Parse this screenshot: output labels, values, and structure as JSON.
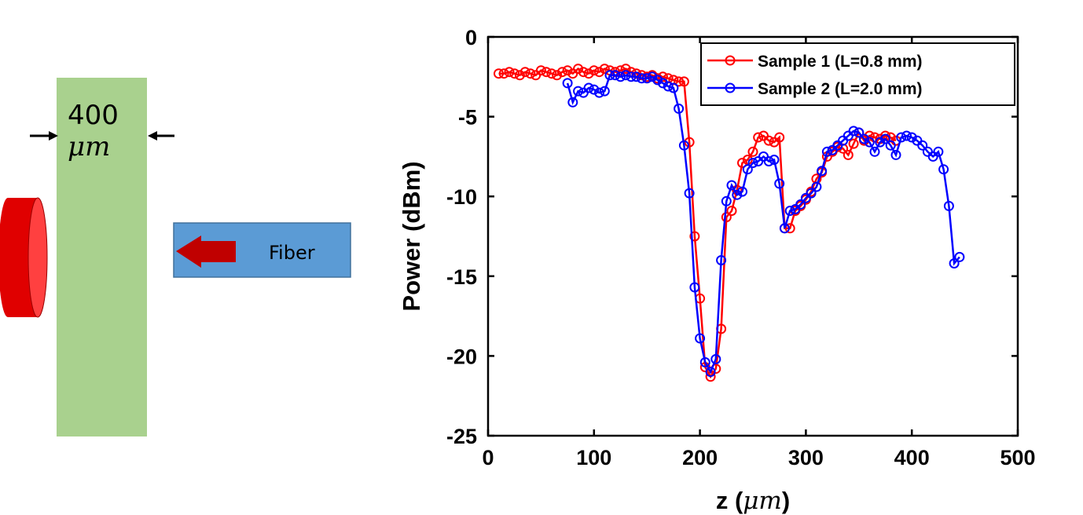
{
  "diagram": {
    "thickness_value": "400",
    "thickness_unit": "μm",
    "fiber_label": "Fiber",
    "colors": {
      "sample": "#a9d18e",
      "lens": "#ff0000",
      "fiber": "#5b9bd5",
      "arrow": "#c00000"
    }
  },
  "chart_data": {
    "type": "line",
    "xlabel_main": "z (",
    "xlabel_unit": "μm",
    "xlabel_end": ")",
    "ylabel": "Power (dBm)",
    "xlim": [
      0,
      500
    ],
    "ylim": [
      -25,
      0
    ],
    "xticks": [
      "0",
      "100",
      "200",
      "300",
      "400",
      "500"
    ],
    "yticks": [
      "0",
      "-5",
      "-10",
      "-15",
      "-20",
      "-25"
    ],
    "xtick_values": [
      0,
      100,
      200,
      300,
      400,
      500
    ],
    "ytick_values": [
      0,
      -5,
      -10,
      -15,
      -20,
      -25
    ],
    "grid": false,
    "legend_position": "top-right",
    "series": [
      {
        "name": "Sample 1 (L=0.8 mm)",
        "color": "#ff0000",
        "marker": "circle",
        "x": [
          10,
          15,
          20,
          25,
          30,
          35,
          40,
          45,
          50,
          55,
          60,
          65,
          70,
          75,
          80,
          85,
          90,
          95,
          100,
          105,
          110,
          115,
          120,
          125,
          130,
          135,
          140,
          145,
          150,
          155,
          160,
          165,
          170,
          175,
          180,
          185,
          190,
          195,
          200,
          205,
          210,
          215,
          220,
          225,
          230,
          235,
          240,
          245,
          250,
          255,
          260,
          265,
          270,
          275,
          280,
          285,
          290,
          295,
          300,
          305,
          310,
          315,
          320,
          325,
          330,
          335,
          340,
          345,
          350,
          355,
          360,
          365,
          370,
          375,
          380,
          385
        ],
        "y": [
          -2.3,
          -2.3,
          -2.2,
          -2.3,
          -2.4,
          -2.2,
          -2.3,
          -2.4,
          -2.1,
          -2.2,
          -2.3,
          -2.4,
          -2.2,
          -2.1,
          -2.3,
          -2.0,
          -2.2,
          -2.3,
          -2.1,
          -2.2,
          -2.0,
          -2.1,
          -2.2,
          -2.1,
          -2.0,
          -2.2,
          -2.3,
          -2.4,
          -2.5,
          -2.4,
          -2.6,
          -2.5,
          -2.6,
          -2.7,
          -2.8,
          -2.8,
          -6.6,
          -12.5,
          -16.4,
          -20.7,
          -21.3,
          -20.8,
          -18.3,
          -11.3,
          -10.9,
          -9.6,
          -7.9,
          -7.7,
          -7.2,
          -6.3,
          -6.2,
          -6.5,
          -6.6,
          -6.3,
          -12.0,
          -12.0,
          -10.9,
          -10.6,
          -10.2,
          -9.7,
          -8.9,
          -8.5,
          -7.5,
          -7.2,
          -6.9,
          -7.0,
          -7.4,
          -6.7,
          -6.0,
          -6.5,
          -6.2,
          -6.3,
          -6.4,
          -6.2,
          -6.3,
          -6.5
        ]
      },
      {
        "name": "Sample 2 (L=2.0 mm)",
        "color": "#0000ff",
        "marker": "circle",
        "x": [
          75,
          80,
          85,
          90,
          95,
          100,
          105,
          110,
          115,
          120,
          125,
          130,
          135,
          140,
          145,
          150,
          155,
          160,
          165,
          170,
          175,
          180,
          185,
          190,
          195,
          200,
          205,
          210,
          215,
          220,
          225,
          230,
          235,
          240,
          245,
          250,
          255,
          260,
          265,
          270,
          275,
          280,
          285,
          290,
          295,
          300,
          305,
          310,
          315,
          320,
          325,
          330,
          335,
          340,
          345,
          350,
          355,
          360,
          365,
          370,
          375,
          380,
          385,
          390,
          395,
          400,
          405,
          410,
          415,
          420,
          425,
          430,
          435,
          440,
          445
        ],
        "y": [
          -2.9,
          -4.1,
          -3.4,
          -3.5,
          -3.2,
          -3.3,
          -3.5,
          -3.4,
          -2.4,
          -2.4,
          -2.5,
          -2.4,
          -2.5,
          -2.5,
          -2.6,
          -2.6,
          -2.5,
          -2.7,
          -2.9,
          -3.1,
          -3.2,
          -4.5,
          -6.8,
          -9.8,
          -15.7,
          -18.9,
          -20.4,
          -21.0,
          -20.2,
          -14.0,
          -10.3,
          -9.3,
          -9.9,
          -9.7,
          -8.3,
          -7.9,
          -7.8,
          -7.5,
          -7.8,
          -7.7,
          -9.2,
          -12.0,
          -10.9,
          -10.8,
          -10.5,
          -10.1,
          -9.8,
          -9.4,
          -8.4,
          -7.2,
          -7.1,
          -6.8,
          -6.5,
          -6.2,
          -5.9,
          -6.0,
          -6.4,
          -6.6,
          -7.2,
          -6.6,
          -6.4,
          -6.8,
          -7.4,
          -6.3,
          -6.2,
          -6.3,
          -6.5,
          -6.8,
          -7.2,
          -7.5,
          -7.2,
          -8.3,
          -10.6,
          -14.2,
          -13.8
        ]
      }
    ]
  }
}
